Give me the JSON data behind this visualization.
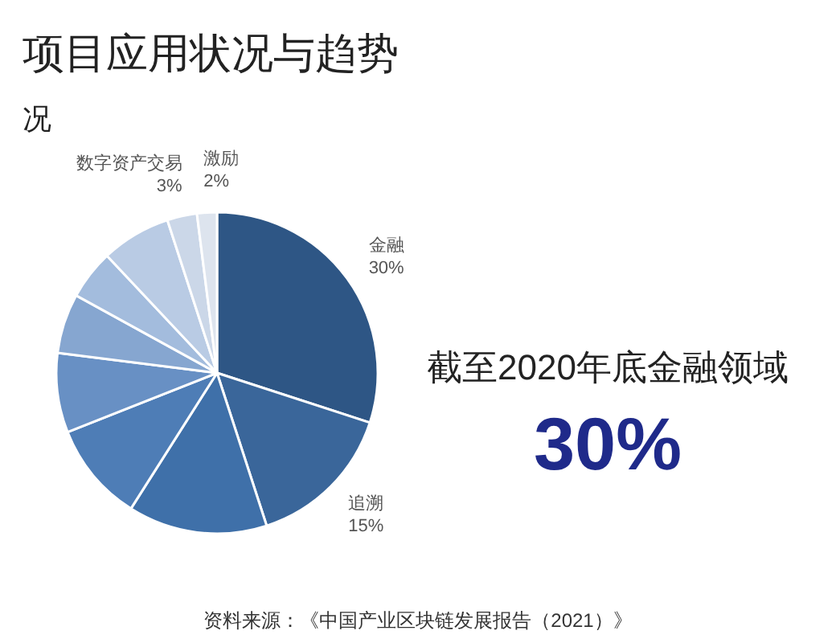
{
  "chart_data": {
    "type": "pie",
    "title": "项目应用状况与趋势",
    "subtitle": "况",
    "categories": [
      "金融",
      "追溯",
      null,
      null,
      null,
      null,
      null,
      null,
      "数字资产交易",
      "激励"
    ],
    "values": [
      30,
      15,
      14,
      10,
      8,
      6,
      5,
      7,
      3,
      2
    ],
    "value_labels": [
      "30%",
      "15%",
      null,
      null,
      null,
      null,
      null,
      null,
      "3%",
      "2%"
    ],
    "colors": [
      "#2e5685",
      "#3a669a",
      "#3f70a9",
      "#4e7db6",
      "#6890c4",
      "#86a6d0",
      "#a3bcdd",
      "#b9cbe4",
      "#cbd7e8",
      "#dde4ee"
    ],
    "legend": false,
    "annotations": [
      "截至2020年底金融领域",
      "30%",
      "资料来源：《中国产业区块链发展报告（2021）》"
    ]
  }
}
